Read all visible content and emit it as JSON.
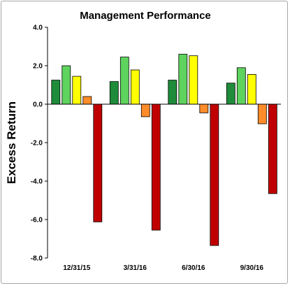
{
  "chart_data": {
    "type": "bar",
    "title": "Management Performance",
    "xlabel": "",
    "ylabel": "Excess Return",
    "categories": [
      "12/31/15",
      "3/31/16",
      "6/30/16",
      "9/30/16"
    ],
    "ylim": [
      -8.0,
      4.0
    ],
    "yticks": [
      "4.0",
      "2.0",
      "0.0",
      "-2.0",
      "-4.0",
      "-6.0",
      "-8.0"
    ],
    "grid": false,
    "legend": "none",
    "series": [
      {
        "color": "#1e8c3a",
        "values": [
          1.25,
          1.18,
          1.25,
          1.1
        ]
      },
      {
        "color": "#5ed35e",
        "values": [
          2.0,
          2.45,
          2.6,
          1.9
        ]
      },
      {
        "color": "#ffff00",
        "values": [
          1.45,
          1.78,
          2.52,
          1.55
        ]
      },
      {
        "color": "#ff8c2a",
        "values": [
          0.4,
          -0.65,
          -0.45,
          -1.02
        ]
      },
      {
        "color": "#c00000",
        "values": [
          -6.12,
          -6.55,
          -7.35,
          -4.65
        ]
      }
    ]
  }
}
